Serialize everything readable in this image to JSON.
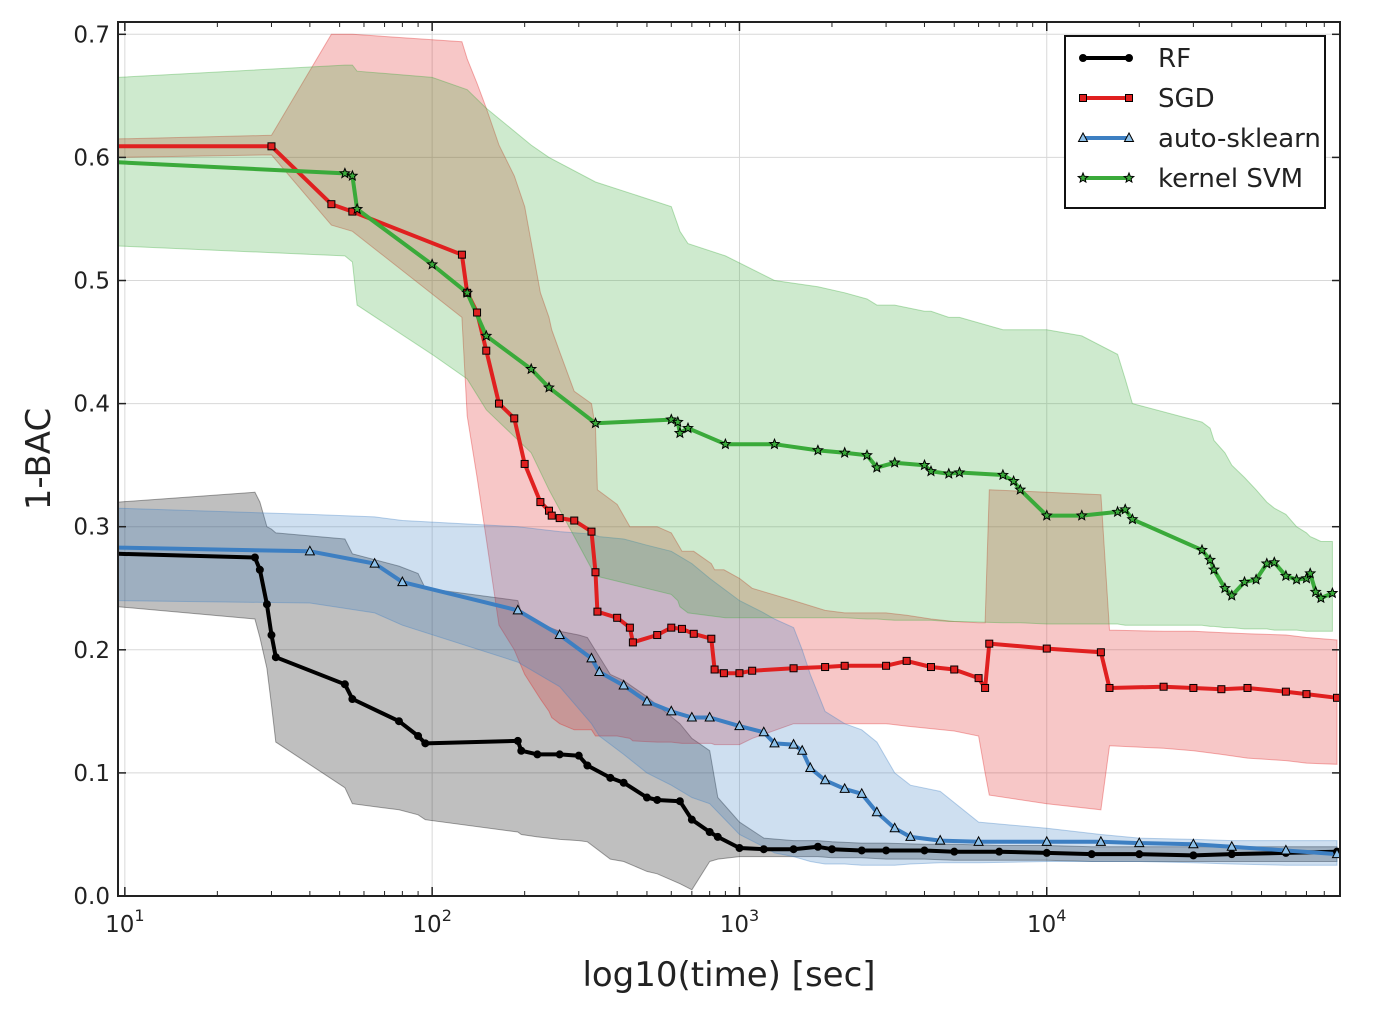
{
  "chart_data": {
    "type": "line",
    "title": "",
    "xlabel": "log10(time) [sec]",
    "ylabel": "1-BAC",
    "x_scale": "log",
    "xlim": [
      9.5,
      90000
    ],
    "ylim": [
      0,
      0.71
    ],
    "x_ticks": [
      {
        "value": 10,
        "base": "10",
        "exp": "1"
      },
      {
        "value": 100,
        "base": "10",
        "exp": "2"
      },
      {
        "value": 1000,
        "base": "10",
        "exp": "3"
      },
      {
        "value": 10000,
        "base": "10",
        "exp": "4"
      }
    ],
    "y_ticks": [
      0.0,
      0.1,
      0.2,
      0.3,
      0.4,
      0.5,
      0.6,
      0.7
    ],
    "y_tick_labels": [
      "0.0",
      "0.1",
      "0.2",
      "0.3",
      "0.4",
      "0.5",
      "0.6",
      "0.7"
    ],
    "grid": true,
    "legend_position": "top-right",
    "series": [
      {
        "name": "RF",
        "color": "#000000",
        "marker": "circle",
        "x": [
          9.5,
          26.5,
          27.5,
          29,
          30,
          31,
          52,
          55,
          78,
          90,
          95,
          190,
          195,
          220,
          260,
          300,
          320,
          380,
          420,
          500,
          540,
          640,
          700,
          800,
          850,
          1000,
          1200,
          1500,
          1800,
          2000,
          2500,
          3000,
          4000,
          5000,
          7000,
          10000,
          14000,
          20000,
          30000,
          40000,
          60000,
          88000
        ],
        "y": [
          0.278,
          0.275,
          0.265,
          0.237,
          0.212,
          0.194,
          0.172,
          0.16,
          0.142,
          0.13,
          0.124,
          0.126,
          0.118,
          0.115,
          0.115,
          0.114,
          0.106,
          0.096,
          0.092,
          0.08,
          0.078,
          0.077,
          0.062,
          0.052,
          0.048,
          0.039,
          0.038,
          0.038,
          0.04,
          0.038,
          0.037,
          0.037,
          0.037,
          0.036,
          0.036,
          0.035,
          0.034,
          0.034,
          0.033,
          0.034,
          0.035,
          0.036
        ],
        "band_upper": [
          0.32,
          0.328,
          0.32,
          0.3,
          0.298,
          0.295,
          0.29,
          0.278,
          0.268,
          0.262,
          0.25,
          0.24,
          0.23,
          0.222,
          0.215,
          0.212,
          0.21,
          0.18,
          0.175,
          0.162,
          0.155,
          0.14,
          0.128,
          0.118,
          0.08,
          0.06,
          0.047,
          0.045,
          0.045,
          0.044,
          0.043,
          0.043,
          0.042,
          0.042,
          0.041,
          0.041,
          0.04,
          0.04,
          0.04,
          0.04,
          0.04,
          0.04
        ],
        "band_lower": [
          0.235,
          0.225,
          0.21,
          0.185,
          0.155,
          0.125,
          0.088,
          0.075,
          0.07,
          0.066,
          0.062,
          0.052,
          0.05,
          0.048,
          0.046,
          0.045,
          0.044,
          0.03,
          0.028,
          0.02,
          0.018,
          0.01,
          0.005,
          0.028,
          0.03,
          0.032,
          0.032,
          0.032,
          0.032,
          0.031,
          0.031,
          0.03,
          0.03,
          0.029,
          0.029,
          0.029,
          0.028,
          0.028,
          0.028,
          0.028,
          0.028,
          0.028
        ]
      },
      {
        "name": "SGD",
        "color": "#e02020",
        "marker": "square",
        "x": [
          9.5,
          30,
          47,
          55,
          125,
          130,
          140,
          150,
          165,
          185,
          200,
          225,
          240,
          245,
          260,
          290,
          330,
          340,
          345,
          400,
          440,
          450,
          540,
          600,
          650,
          710,
          810,
          830,
          890,
          1000,
          1100,
          1500,
          1900,
          2200,
          3000,
          3500,
          4200,
          5000,
          6000,
          6300,
          6500,
          10000,
          15000,
          16000,
          24000,
          30000,
          37000,
          45000,
          60000,
          70000,
          88000
        ],
        "y": [
          0.609,
          0.609,
          0.562,
          0.556,
          0.521,
          0.49,
          0.474,
          0.443,
          0.4,
          0.388,
          0.351,
          0.32,
          0.313,
          0.309,
          0.307,
          0.305,
          0.296,
          0.263,
          0.231,
          0.226,
          0.218,
          0.206,
          0.212,
          0.218,
          0.217,
          0.213,
          0.209,
          0.184,
          0.181,
          0.181,
          0.183,
          0.185,
          0.186,
          0.187,
          0.187,
          0.191,
          0.186,
          0.184,
          0.177,
          0.169,
          0.205,
          0.201,
          0.198,
          0.169,
          0.17,
          0.169,
          0.168,
          0.169,
          0.166,
          0.164,
          0.161
        ],
        "band_upper": [
          0.615,
          0.618,
          0.7,
          0.7,
          0.694,
          0.68,
          0.66,
          0.64,
          0.61,
          0.585,
          0.56,
          0.49,
          0.47,
          0.46,
          0.442,
          0.41,
          0.4,
          0.38,
          0.33,
          0.318,
          0.3,
          0.3,
          0.3,
          0.295,
          0.28,
          0.28,
          0.27,
          0.265,
          0.265,
          0.258,
          0.25,
          0.24,
          0.232,
          0.23,
          0.23,
          0.228,
          0.225,
          0.223,
          0.222,
          0.222,
          0.33,
          0.328,
          0.326,
          0.216,
          0.215,
          0.215,
          0.214,
          0.213,
          0.212,
          0.21,
          0.208
        ],
        "band_lower": [
          0.6,
          0.602,
          0.545,
          0.54,
          0.47,
          0.39,
          0.34,
          0.29,
          0.22,
          0.2,
          0.18,
          0.16,
          0.15,
          0.145,
          0.14,
          0.135,
          0.135,
          0.13,
          0.13,
          0.13,
          0.128,
          0.126,
          0.125,
          0.125,
          0.124,
          0.124,
          0.124,
          0.123,
          0.123,
          0.123,
          0.128,
          0.14,
          0.14,
          0.14,
          0.14,
          0.138,
          0.136,
          0.134,
          0.13,
          0.1,
          0.082,
          0.075,
          0.07,
          0.122,
          0.12,
          0.118,
          0.115,
          0.112,
          0.11,
          0.108,
          0.107
        ]
      },
      {
        "name": "auto-sklearn",
        "color": "#3d7fc2",
        "marker": "triangle",
        "x": [
          9.5,
          40,
          65,
          80,
          190,
          260,
          330,
          350,
          420,
          500,
          600,
          700,
          800,
          1000,
          1200,
          1300,
          1500,
          1600,
          1700,
          1900,
          2200,
          2500,
          2800,
          3200,
          3600,
          4500,
          6000,
          10000,
          15000,
          20000,
          30000,
          40000,
          60000,
          88000
        ],
        "y": [
          0.283,
          0.28,
          0.27,
          0.255,
          0.232,
          0.212,
          0.193,
          0.182,
          0.171,
          0.158,
          0.15,
          0.145,
          0.145,
          0.138,
          0.133,
          0.124,
          0.123,
          0.118,
          0.104,
          0.094,
          0.087,
          0.083,
          0.068,
          0.055,
          0.048,
          0.045,
          0.044,
          0.044,
          0.044,
          0.043,
          0.042,
          0.04,
          0.037,
          0.034
        ],
        "band_upper": [
          0.315,
          0.31,
          0.308,
          0.305,
          0.3,
          0.296,
          0.294,
          0.292,
          0.29,
          0.285,
          0.28,
          0.27,
          0.258,
          0.24,
          0.23,
          0.225,
          0.218,
          0.2,
          0.18,
          0.15,
          0.14,
          0.135,
          0.125,
          0.1,
          0.09,
          0.085,
          0.06,
          0.055,
          0.05,
          0.047,
          0.046,
          0.045,
          0.045,
          0.045
        ],
        "band_lower": [
          0.24,
          0.238,
          0.23,
          0.22,
          0.19,
          0.17,
          0.14,
          0.13,
          0.115,
          0.1,
          0.09,
          0.08,
          0.075,
          0.05,
          0.04,
          0.035,
          0.032,
          0.03,
          0.028,
          0.026,
          0.026,
          0.025,
          0.025,
          0.025,
          0.026,
          0.027,
          0.027,
          0.028,
          0.028,
          0.028,
          0.027,
          0.026,
          0.025,
          0.025
        ]
      },
      {
        "name": "kernel SVM",
        "color": "#3aaa3a",
        "marker": "star",
        "x": [
          9.5,
          52,
          55,
          57,
          100,
          130,
          150,
          210,
          240,
          340,
          600,
          630,
          640,
          680,
          900,
          1300,
          1800,
          2200,
          2600,
          2800,
          3200,
          4000,
          4200,
          4800,
          5200,
          7200,
          7800,
          8200,
          10000,
          13000,
          17000,
          18000,
          19000,
          32000,
          34000,
          35000,
          38000,
          40000,
          44000,
          48000,
          52000,
          55000,
          60000,
          65000,
          70000,
          72000,
          75000,
          78000,
          85000
        ],
        "y": [
          0.596,
          0.587,
          0.585,
          0.558,
          0.513,
          0.49,
          0.455,
          0.428,
          0.413,
          0.384,
          0.387,
          0.385,
          0.376,
          0.38,
          0.367,
          0.367,
          0.362,
          0.36,
          0.358,
          0.348,
          0.352,
          0.35,
          0.345,
          0.343,
          0.344,
          0.342,
          0.337,
          0.33,
          0.309,
          0.309,
          0.312,
          0.314,
          0.306,
          0.281,
          0.273,
          0.265,
          0.25,
          0.244,
          0.255,
          0.257,
          0.27,
          0.271,
          0.26,
          0.257,
          0.258,
          0.262,
          0.247,
          0.242,
          0.246
        ],
        "band_upper": [
          0.665,
          0.675,
          0.675,
          0.67,
          0.665,
          0.655,
          0.64,
          0.61,
          0.6,
          0.58,
          0.56,
          0.545,
          0.54,
          0.53,
          0.52,
          0.5,
          0.495,
          0.49,
          0.485,
          0.48,
          0.48,
          0.475,
          0.475,
          0.47,
          0.47,
          0.46,
          0.46,
          0.46,
          0.46,
          0.455,
          0.44,
          0.42,
          0.4,
          0.385,
          0.38,
          0.37,
          0.36,
          0.35,
          0.34,
          0.33,
          0.32,
          0.315,
          0.31,
          0.3,
          0.295,
          0.292,
          0.29,
          0.288,
          0.288
        ],
        "band_lower": [
          0.528,
          0.52,
          0.515,
          0.48,
          0.44,
          0.42,
          0.395,
          0.36,
          0.33,
          0.26,
          0.245,
          0.24,
          0.235,
          0.23,
          0.226,
          0.226,
          0.226,
          0.226,
          0.225,
          0.225,
          0.224,
          0.224,
          0.224,
          0.223,
          0.223,
          0.222,
          0.222,
          0.222,
          0.221,
          0.221,
          0.221,
          0.22,
          0.22,
          0.22,
          0.219,
          0.219,
          0.218,
          0.218,
          0.217,
          0.217,
          0.217,
          0.216,
          0.216,
          0.216,
          0.215,
          0.215,
          0.215,
          0.215,
          0.215
        ]
      }
    ]
  }
}
